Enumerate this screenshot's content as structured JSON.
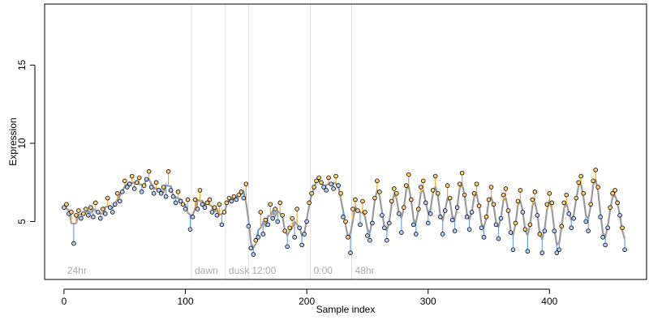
{
  "chart_data": {
    "type": "scatter",
    "xlabel": "Sample index",
    "ylabel": "Expression",
    "xlim": [
      -16,
      480
    ],
    "ylim": [
      1.3,
      18.9
    ],
    "x_ticks": [
      0,
      100,
      200,
      300,
      400
    ],
    "y_ticks": [
      5,
      10,
      15
    ],
    "grid": false,
    "legend": "none",
    "colors": {
      "above_fit": "#f0a830",
      "below_fit": "#6f9ee8",
      "fit_line": "#9a9a9a",
      "point_fill": "#f6cf7a",
      "point_fill_low": "#b9cbef",
      "point_edge": "#000000",
      "region_line": "#dddddd",
      "region_label": "#aaaaaa"
    },
    "regions": [
      {
        "label": "24hr",
        "start": 0
      },
      {
        "label": "dawn",
        "start": 105
      },
      {
        "label": "dusk",
        "start": 133
      },
      {
        "label": "12:00",
        "start": 152
      },
      {
        "label": "0:00",
        "start": 203
      },
      {
        "label": "48hr",
        "start": 237
      }
    ],
    "points": [
      [
        0,
        5.9
      ],
      [
        2,
        6.1
      ],
      [
        4,
        5.5
      ],
      [
        6,
        5.6
      ],
      [
        8,
        3.6
      ],
      [
        10,
        5.4
      ],
      [
        12,
        5.7
      ],
      [
        14,
        5.2
      ],
      [
        16,
        5.5
      ],
      [
        18,
        5.8
      ],
      [
        20,
        5.4
      ],
      [
        22,
        5.9
      ],
      [
        24,
        5.3
      ],
      [
        26,
        6.2
      ],
      [
        28,
        5.6
      ],
      [
        30,
        5.2
      ],
      [
        32,
        5.8
      ],
      [
        34,
        5.5
      ],
      [
        36,
        6.5
      ],
      [
        38,
        5.9
      ],
      [
        40,
        5.6
      ],
      [
        42,
        6.1
      ],
      [
        44,
        6.8
      ],
      [
        46,
        6.3
      ],
      [
        48,
        6.9
      ],
      [
        50,
        7.6
      ],
      [
        52,
        7.2
      ],
      [
        54,
        7.4
      ],
      [
        56,
        7.9
      ],
      [
        58,
        7.1
      ],
      [
        60,
        7.5
      ],
      [
        62,
        7.8
      ],
      [
        64,
        6.9
      ],
      [
        66,
        7.3
      ],
      [
        68,
        7.7
      ],
      [
        70,
        8.2
      ],
      [
        72,
        7.2
      ],
      [
        74,
        6.8
      ],
      [
        76,
        7.5
      ],
      [
        78,
        7.0
      ],
      [
        80,
        6.8
      ],
      [
        82,
        7.2
      ],
      [
        84,
        6.6
      ],
      [
        86,
        8.2
      ],
      [
        88,
        7.0
      ],
      [
        90,
        6.6
      ],
      [
        92,
        6.2
      ],
      [
        94,
        6.9
      ],
      [
        96,
        6.3
      ],
      [
        98,
        6.1
      ],
      [
        100,
        5.8
      ],
      [
        102,
        6.4
      ],
      [
        104,
        4.5
      ],
      [
        106,
        5.3
      ],
      [
        108,
        6.4
      ],
      [
        110,
        5.8
      ],
      [
        112,
        7.0
      ],
      [
        114,
        6.1
      ],
      [
        116,
        5.9
      ],
      [
        118,
        6.2
      ],
      [
        120,
        6.4
      ],
      [
        122,
        5.6
      ],
      [
        124,
        5.9
      ],
      [
        126,
        5.4
      ],
      [
        128,
        6.1
      ],
      [
        130,
        4.8
      ],
      [
        132,
        5.6
      ],
      [
        134,
        6.2
      ],
      [
        136,
        6.5
      ],
      [
        138,
        6.3
      ],
      [
        140,
        6.6
      ],
      [
        142,
        6.4
      ],
      [
        144,
        6.7
      ],
      [
        146,
        6.9
      ],
      [
        148,
        6.5
      ],
      [
        150,
        7.4
      ],
      [
        152,
        4.7
      ],
      [
        154,
        3.3
      ],
      [
        156,
        2.9
      ],
      [
        158,
        3.8
      ],
      [
        160,
        4.0
      ],
      [
        162,
        5.6
      ],
      [
        164,
        4.2
      ],
      [
        166,
        5.1
      ],
      [
        168,
        4.8
      ],
      [
        170,
        6.1
      ],
      [
        172,
        5.2
      ],
      [
        174,
        5.8
      ],
      [
        176,
        5.0
      ],
      [
        178,
        6.2
      ],
      [
        180,
        5.4
      ],
      [
        182,
        4.4
      ],
      [
        184,
        3.4
      ],
      [
        186,
        4.6
      ],
      [
        188,
        5.2
      ],
      [
        190,
        4.0
      ],
      [
        192,
        5.8
      ],
      [
        194,
        4.6
      ],
      [
        196,
        3.5
      ],
      [
        198,
        4.2
      ],
      [
        200,
        5.0
      ],
      [
        202,
        6.2
      ],
      [
        204,
        6.8
      ],
      [
        206,
        7.2
      ],
      [
        208,
        7.6
      ],
      [
        210,
        7.8
      ],
      [
        212,
        7.5
      ],
      [
        214,
        7.2
      ],
      [
        216,
        7.0
      ],
      [
        218,
        7.8
      ],
      [
        220,
        7.4
      ],
      [
        222,
        7.1
      ],
      [
        224,
        7.9
      ],
      [
        226,
        7.3
      ],
      [
        228,
        6.8
      ],
      [
        230,
        5.3
      ],
      [
        232,
        5.0
      ],
      [
        234,
        4.0
      ],
      [
        236,
        3.0
      ],
      [
        238,
        5.8
      ],
      [
        240,
        6.4
      ],
      [
        242,
        5.7
      ],
      [
        244,
        4.8
      ],
      [
        246,
        6.3
      ],
      [
        248,
        5.6
      ],
      [
        250,
        4.1
      ],
      [
        252,
        3.8
      ],
      [
        254,
        4.9
      ],
      [
        256,
        6.5
      ],
      [
        258,
        7.6
      ],
      [
        260,
        6.9
      ],
      [
        262,
        5.4
      ],
      [
        264,
        4.6
      ],
      [
        266,
        3.8
      ],
      [
        268,
        4.9
      ],
      [
        270,
        6.3
      ],
      [
        272,
        7.1
      ],
      [
        274,
        6.8
      ],
      [
        276,
        5.5
      ],
      [
        278,
        4.3
      ],
      [
        280,
        5.9
      ],
      [
        282,
        7.3
      ],
      [
        284,
        8.0
      ],
      [
        286,
        6.4
      ],
      [
        288,
        4.8
      ],
      [
        290,
        4.2
      ],
      [
        292,
        5.8
      ],
      [
        294,
        7.2
      ],
      [
        296,
        7.6
      ],
      [
        298,
        6.2
      ],
      [
        300,
        4.9
      ],
      [
        302,
        5.5
      ],
      [
        304,
        7.0
      ],
      [
        306,
        7.9
      ],
      [
        308,
        6.8
      ],
      [
        310,
        5.3
      ],
      [
        312,
        4.2
      ],
      [
        314,
        5.7
      ],
      [
        316,
        7.3
      ],
      [
        318,
        6.5
      ],
      [
        320,
        5.1
      ],
      [
        322,
        4.4
      ],
      [
        324,
        5.9
      ],
      [
        326,
        7.4
      ],
      [
        328,
        8.1
      ],
      [
        330,
        6.7
      ],
      [
        332,
        5.3
      ],
      [
        334,
        4.5
      ],
      [
        336,
        5.6
      ],
      [
        338,
        6.8
      ],
      [
        340,
        7.4
      ],
      [
        342,
        6.0
      ],
      [
        344,
        4.6
      ],
      [
        346,
        4.0
      ],
      [
        348,
        5.3
      ],
      [
        350,
        6.4
      ],
      [
        352,
        7.2
      ],
      [
        354,
        6.1
      ],
      [
        356,
        4.8
      ],
      [
        358,
        3.9
      ],
      [
        360,
        5.2
      ],
      [
        362,
        6.7
      ],
      [
        364,
        7.1
      ],
      [
        366,
        5.7
      ],
      [
        368,
        4.3
      ],
      [
        370,
        3.2
      ],
      [
        372,
        4.9
      ],
      [
        374,
        6.3
      ],
      [
        376,
        7.0
      ],
      [
        378,
        5.6
      ],
      [
        380,
        4.5
      ],
      [
        382,
        3.1
      ],
      [
        384,
        4.8
      ],
      [
        386,
        6.4
      ],
      [
        388,
        6.9
      ],
      [
        390,
        5.4
      ],
      [
        392,
        4.2
      ],
      [
        394,
        3.0
      ],
      [
        396,
        4.4
      ],
      [
        398,
        6.1
      ],
      [
        400,
        6.8
      ],
      [
        402,
        6.2
      ],
      [
        404,
        4.4
      ],
      [
        406,
        3.0
      ],
      [
        408,
        3.2
      ],
      [
        410,
        4.7
      ],
      [
        412,
        6.2
      ],
      [
        414,
        6.7
      ],
      [
        416,
        5.5
      ],
      [
        418,
        4.6
      ],
      [
        420,
        5.2
      ],
      [
        422,
        6.5
      ],
      [
        424,
        7.5
      ],
      [
        426,
        7.9
      ],
      [
        428,
        6.8
      ],
      [
        430,
        5.0
      ],
      [
        432,
        4.4
      ],
      [
        434,
        6.1
      ],
      [
        436,
        7.6
      ],
      [
        438,
        8.3
      ],
      [
        440,
        7.2
      ],
      [
        442,
        5.3
      ],
      [
        444,
        4.0
      ],
      [
        446,
        3.5
      ],
      [
        448,
        4.6
      ],
      [
        450,
        5.9
      ],
      [
        452,
        6.8
      ],
      [
        454,
        7.0
      ],
      [
        456,
        6.2
      ],
      [
        458,
        5.4
      ],
      [
        460,
        4.6
      ],
      [
        462,
        3.2
      ]
    ]
  }
}
